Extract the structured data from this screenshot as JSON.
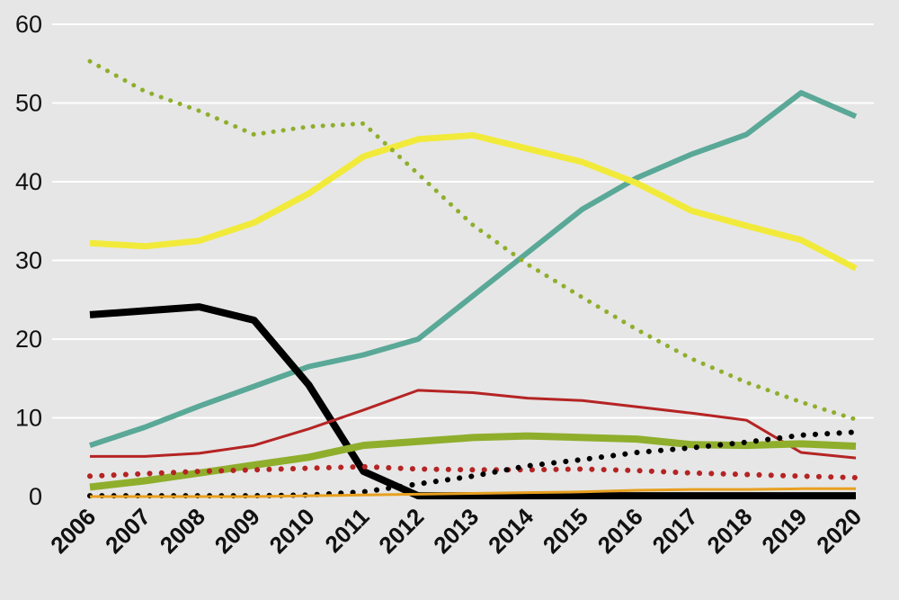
{
  "chart_data": {
    "type": "line",
    "title": "",
    "xlabel": "",
    "ylabel": "",
    "ylim": [
      0,
      60
    ],
    "yticks": [
      0,
      10,
      20,
      30,
      40,
      50,
      60
    ],
    "grid": true,
    "legend": "none",
    "x": [
      "2006",
      "2007",
      "2008",
      "2009",
      "2010",
      "2011",
      "2012",
      "2013",
      "2014",
      "2015",
      "2016",
      "2017",
      "2018",
      "2019",
      "2020"
    ],
    "series": [
      {
        "color": "#5aa897",
        "style": "solid",
        "width": 6,
        "values": [
          6.5,
          8.8,
          11.5,
          14.0,
          16.5,
          18.0,
          20.0,
          25.5,
          31.0,
          36.5,
          40.5,
          43.5,
          46.0,
          51.3,
          48.3
        ]
      },
      {
        "color": "#f2ea3b",
        "style": "solid",
        "width": 7,
        "values": [
          32.2,
          31.8,
          32.5,
          34.8,
          38.5,
          43.2,
          45.4,
          45.9,
          44.2,
          42.5,
          39.8,
          36.3,
          34.4,
          32.6,
          29.0
        ]
      },
      {
        "color": "#8fae2c",
        "style": "dotted",
        "width": 5,
        "values": [
          55.3,
          51.5,
          49.0,
          46.0,
          47.0,
          47.4,
          41.0,
          34.5,
          29.5,
          25.3,
          21.2,
          17.5,
          14.5,
          12.0,
          9.8
        ]
      },
      {
        "color": "#000000",
        "style": "solid",
        "width": 8,
        "values": [
          23.1,
          23.6,
          24.1,
          22.4,
          14.2,
          3.2,
          0.1,
          0.1,
          0.1,
          0.1,
          0.1,
          0.1,
          0.1,
          0.1,
          0.1
        ]
      },
      {
        "color": "#b52424",
        "style": "solid",
        "width": 3,
        "values": [
          5.1,
          5.1,
          5.5,
          6.5,
          8.6,
          11.0,
          13.5,
          13.2,
          12.5,
          12.2,
          11.4,
          10.6,
          9.7,
          5.6,
          4.9
        ]
      },
      {
        "color": "#8fae2c",
        "style": "solid",
        "width": 8,
        "values": [
          1.2,
          2.0,
          3.0,
          4.0,
          5.0,
          6.5,
          7.0,
          7.5,
          7.7,
          7.5,
          7.3,
          6.6,
          6.5,
          6.7,
          6.4
        ]
      },
      {
        "color": "#b52424",
        "style": "dotted",
        "width": 6,
        "values": [
          2.6,
          2.9,
          3.2,
          3.4,
          3.6,
          3.8,
          3.5,
          3.4,
          3.4,
          3.5,
          3.3,
          3.0,
          2.8,
          2.6,
          2.4
        ]
      },
      {
        "color": "#000000",
        "style": "dotted",
        "width": 6,
        "values": [
          0.1,
          0.1,
          0.1,
          0.1,
          0.2,
          0.6,
          1.6,
          2.6,
          3.9,
          4.7,
          5.6,
          6.2,
          6.9,
          7.8,
          8.2
        ]
      },
      {
        "color": "#e8a020",
        "style": "solid",
        "width": 3,
        "values": [
          0.0,
          0.0,
          0.0,
          0.0,
          0.1,
          0.2,
          0.3,
          0.4,
          0.5,
          0.6,
          0.8,
          0.9,
          0.9,
          1.0,
          1.0
        ]
      }
    ]
  }
}
